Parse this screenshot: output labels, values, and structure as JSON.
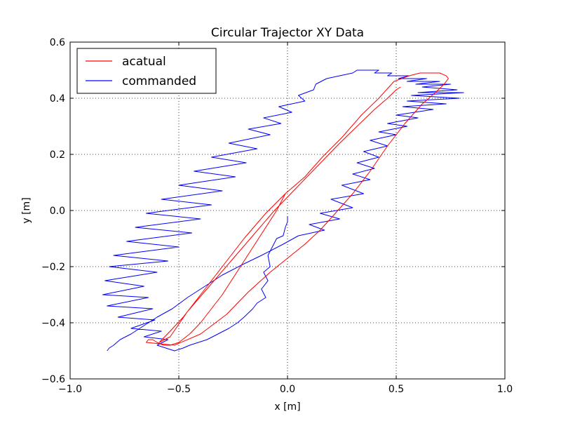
{
  "chart_data": {
    "type": "line",
    "title": "Circular Trajector XY Data",
    "xlabel": "x [m]",
    "ylabel": "y [m]",
    "xlim": [
      -1.0,
      1.0
    ],
    "ylim": [
      -0.6,
      0.6
    ],
    "xticks": [
      -1.0,
      -0.5,
      0.0,
      0.5,
      1.0
    ],
    "yticks": [
      -0.6,
      -0.4,
      -0.2,
      0.0,
      0.2,
      0.4,
      0.6
    ],
    "xtick_labels": [
      "−1.0",
      "−0.5",
      "0.0",
      "0.5",
      "1.0"
    ],
    "ytick_labels": [
      "−0.6",
      "−0.4",
      "−0.2",
      "0.0",
      "0.2",
      "0.4",
      "0.6"
    ],
    "grid": true,
    "legend_position": "top-left",
    "series": [
      {
        "name": "acatual",
        "color": "#ff0000",
        "x": [
          -0.01,
          -0.05,
          -0.1,
          -0.15,
          -0.2,
          -0.25,
          -0.3,
          -0.35,
          -0.4,
          -0.45,
          -0.5,
          -0.54,
          -0.57,
          -0.6,
          -0.62,
          -0.64,
          -0.65,
          -0.52,
          -0.4,
          -0.28,
          -0.18,
          -0.08,
          0.0,
          0.08,
          0.15,
          0.22,
          0.3,
          0.38,
          0.46,
          0.54,
          0.62,
          0.68,
          0.72,
          0.74,
          0.73,
          0.7,
          0.66,
          0.61,
          0.56,
          0.49,
          0.42,
          0.34,
          0.25,
          0.16,
          0.08,
          -0.01,
          -0.1,
          -0.2,
          -0.3,
          -0.4,
          -0.48,
          -0.54,
          -0.59,
          -0.54,
          -0.46,
          -0.36,
          -0.26,
          -0.16,
          -0.06,
          0.04,
          0.14,
          0.24,
          0.32,
          0.4,
          0.46,
          0.5,
          0.52
        ],
        "y": [
          0.06,
          0.0,
          -0.06,
          -0.12,
          -0.18,
          -0.24,
          -0.3,
          -0.35,
          -0.4,
          -0.44,
          -0.47,
          -0.48,
          -0.48,
          -0.47,
          -0.46,
          -0.46,
          -0.47,
          -0.48,
          -0.44,
          -0.37,
          -0.29,
          -0.22,
          -0.17,
          -0.12,
          -0.07,
          -0.01,
          0.06,
          0.14,
          0.23,
          0.31,
          0.38,
          0.42,
          0.45,
          0.47,
          0.48,
          0.49,
          0.49,
          0.49,
          0.48,
          0.46,
          0.4,
          0.34,
          0.26,
          0.19,
          0.12,
          0.06,
          -0.01,
          -0.1,
          -0.2,
          -0.3,
          -0.38,
          -0.43,
          -0.47,
          -0.45,
          -0.36,
          -0.27,
          -0.18,
          -0.09,
          0.0,
          0.08,
          0.16,
          0.24,
          0.3,
          0.36,
          0.4,
          0.43,
          0.44
        ]
      },
      {
        "name": "commanded",
        "color": "#0000ff",
        "x": [
          0.0,
          0.0,
          -0.01,
          -0.02,
          -0.05,
          -0.07,
          -0.09,
          -0.08,
          -0.11,
          -0.09,
          -0.12,
          -0.1,
          -0.14,
          -0.16,
          -0.2,
          -0.23,
          -0.27,
          -0.32,
          -0.37,
          -0.41,
          -0.45,
          -0.48,
          -0.52,
          -0.6,
          -0.55,
          -0.66,
          -0.58,
          -0.72,
          -0.61,
          -0.78,
          -0.62,
          -0.83,
          -0.64,
          -0.85,
          -0.66,
          -0.84,
          -0.6,
          -0.82,
          -0.55,
          -0.8,
          -0.5,
          -0.74,
          -0.44,
          -0.7,
          -0.4,
          -0.65,
          -0.35,
          -0.58,
          -0.3,
          -0.5,
          -0.24,
          -0.43,
          -0.19,
          -0.35,
          -0.14,
          -0.27,
          -0.08,
          -0.18,
          -0.03,
          -0.11,
          0.02,
          -0.04,
          0.08,
          0.05,
          0.12,
          0.13,
          0.18,
          0.24,
          0.3,
          0.32,
          0.36,
          0.42,
          0.4,
          0.48,
          0.46,
          0.56,
          0.51,
          0.64,
          0.55,
          0.7,
          0.59,
          0.75,
          0.62,
          0.78,
          0.6,
          0.81,
          0.57,
          0.79,
          0.55,
          0.73,
          0.53,
          0.67,
          0.5,
          0.6,
          0.46,
          0.55,
          0.42,
          0.5,
          0.38,
          0.46,
          0.35,
          0.42,
          0.32,
          0.4,
          0.3,
          0.38,
          0.25,
          0.35,
          0.2,
          0.3,
          0.15,
          0.24,
          0.1,
          0.17,
          0.05,
          -0.02,
          -0.12,
          -0.2,
          -0.3,
          -0.38,
          -0.46,
          -0.53,
          -0.6,
          -0.66,
          -0.72,
          -0.77,
          -0.8,
          -0.82,
          -0.83
        ],
        "y": [
          -0.02,
          -0.04,
          -0.06,
          -0.09,
          -0.1,
          -0.13,
          -0.16,
          -0.2,
          -0.22,
          -0.25,
          -0.28,
          -0.31,
          -0.33,
          -0.35,
          -0.38,
          -0.4,
          -0.42,
          -0.44,
          -0.46,
          -0.47,
          -0.48,
          -0.49,
          -0.5,
          -0.48,
          -0.46,
          -0.45,
          -0.43,
          -0.42,
          -0.39,
          -0.38,
          -0.35,
          -0.34,
          -0.31,
          -0.3,
          -0.27,
          -0.25,
          -0.22,
          -0.2,
          -0.18,
          -0.16,
          -0.13,
          -0.11,
          -0.08,
          -0.06,
          -0.03,
          -0.01,
          0.02,
          0.04,
          0.07,
          0.09,
          0.12,
          0.14,
          0.17,
          0.19,
          0.22,
          0.24,
          0.27,
          0.29,
          0.31,
          0.33,
          0.35,
          0.37,
          0.39,
          0.41,
          0.43,
          0.45,
          0.47,
          0.48,
          0.49,
          0.5,
          0.5,
          0.5,
          0.49,
          0.49,
          0.48,
          0.48,
          0.47,
          0.47,
          0.46,
          0.46,
          0.45,
          0.45,
          0.44,
          0.43,
          0.42,
          0.42,
          0.41,
          0.4,
          0.39,
          0.38,
          0.37,
          0.36,
          0.34,
          0.33,
          0.31,
          0.3,
          0.28,
          0.27,
          0.25,
          0.23,
          0.21,
          0.19,
          0.17,
          0.15,
          0.13,
          0.11,
          0.09,
          0.06,
          0.04,
          0.01,
          -0.01,
          -0.03,
          -0.05,
          -0.07,
          -0.09,
          -0.12,
          -0.16,
          -0.19,
          -0.23,
          -0.27,
          -0.31,
          -0.35,
          -0.38,
          -0.41,
          -0.44,
          -0.46,
          -0.48,
          -0.49,
          -0.5
        ]
      }
    ]
  }
}
